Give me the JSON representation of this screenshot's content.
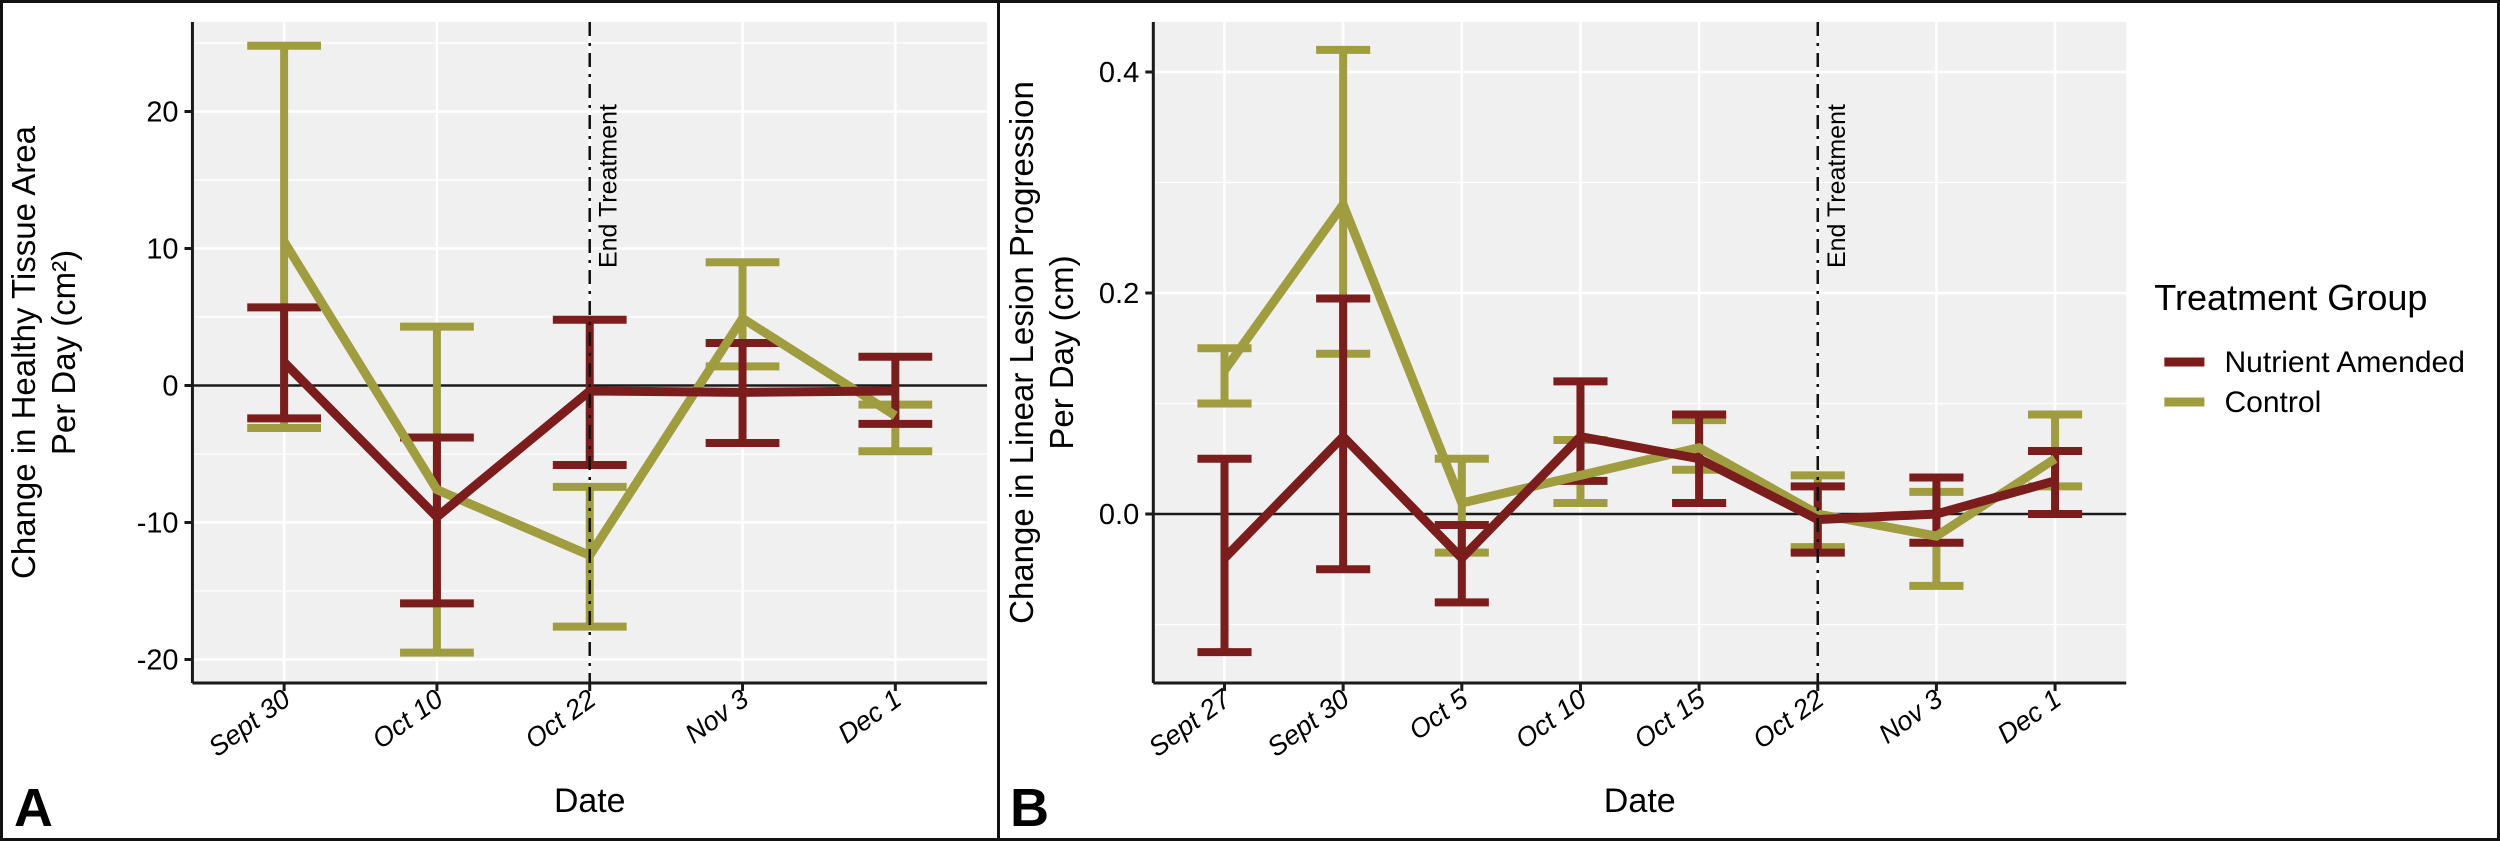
{
  "figure": {
    "background": "#ffffff",
    "plot_background": "#f0f0f0",
    "gridline_color": "#ffffff",
    "axis_color": "#1a1a1a",
    "legend": {
      "title": "Treatment Group",
      "position": "right",
      "items": [
        {
          "label": "Nutrient Amended",
          "color": "#7b1d1d"
        },
        {
          "label": "Control",
          "color": "#a09d40"
        }
      ]
    }
  },
  "chart_data": [
    {
      "type": "line",
      "panel_label": "A",
      "xlabel": "Date",
      "ylabel": "Change in Healthy Tissue Area Per Day (cm²)",
      "ylabel_lines": [
        "Change in Healthy Tissue Area",
        "Per Day (cm²)"
      ],
      "categories": [
        "Sept 30",
        "Oct 10",
        "Oct 22",
        "Nov 3",
        "Dec 1"
      ],
      "yticks": [
        20,
        10,
        0,
        -10,
        -20
      ],
      "ytick_labels": [
        "20",
        "10",
        "0",
        "-10",
        "-20"
      ],
      "yminor": [
        25,
        15,
        5,
        -5,
        -15
      ],
      "ylim": [
        -21.5,
        26.5
      ],
      "grid": true,
      "annotations": {
        "hline_at": 0,
        "vline_at": "Oct 22",
        "vline_label": "End Treatment"
      },
      "series": [
        {
          "name": "Nutrient Amended",
          "color": "#7b1d1d",
          "means": [
            1.7,
            -9.6,
            -0.4,
            -0.5,
            -0.4
          ],
          "err_lo": [
            -2.4,
            -15.9,
            -5.8,
            -4.2,
            -2.8
          ],
          "err_hi": [
            5.7,
            -3.8,
            4.8,
            3.1,
            2.1
          ]
        },
        {
          "name": "Control",
          "color": "#a09d40",
          "means": [
            10.5,
            -7.6,
            -12.4,
            4.9,
            -2.2
          ],
          "err_lo": [
            -3.1,
            -19.5,
            -17.6,
            1.4,
            -4.8
          ],
          "err_hi": [
            24.8,
            4.3,
            -7.4,
            9.0,
            -1.4
          ]
        }
      ]
    },
    {
      "type": "line",
      "panel_label": "B",
      "xlabel": "Date",
      "ylabel": "Change in Linear Lesion Progression Per Day (cm)",
      "ylabel_lines": [
        "Change in Linear Lesion Progression",
        "Per Day (cm)"
      ],
      "categories": [
        "Sept 27",
        "Sept 30",
        "Oct 5",
        "Oct 10",
        "Oct 15",
        "Oct 22",
        "Nov 3",
        "Dec 1"
      ],
      "yticks": [
        0.4,
        0.2,
        0.0
      ],
      "ytick_labels": [
        "0.4",
        "0.2",
        "0.0"
      ],
      "yminor": [
        0.3,
        0.1,
        -0.1
      ],
      "ylim": [
        -0.155,
        0.445
      ],
      "grid": true,
      "annotations": {
        "hline_at": 0,
        "vline_at": "Oct 22",
        "vline_label": "End Treatment"
      },
      "series": [
        {
          "name": "Nutrient Amended",
          "color": "#7b1d1d",
          "means": [
            -0.04,
            0.07,
            -0.04,
            0.07,
            0.05,
            -0.005,
            0.0,
            0.03
          ],
          "err_lo": [
            -0.125,
            -0.05,
            -0.08,
            0.03,
            0.01,
            -0.035,
            -0.026,
            0.0
          ],
          "err_hi": [
            0.05,
            0.195,
            -0.01,
            0.12,
            0.09,
            0.025,
            0.033,
            0.057
          ]
        },
        {
          "name": "Control",
          "color": "#a09d40",
          "means": [
            0.13,
            0.28,
            0.01,
            0.035,
            0.06,
            0.0,
            -0.02,
            0.05
          ],
          "err_lo": [
            0.1,
            0.145,
            -0.035,
            0.01,
            0.04,
            -0.03,
            -0.065,
            0.025
          ],
          "err_hi": [
            0.15,
            0.42,
            0.05,
            0.067,
            0.085,
            0.035,
            0.02,
            0.09
          ]
        }
      ]
    }
  ]
}
